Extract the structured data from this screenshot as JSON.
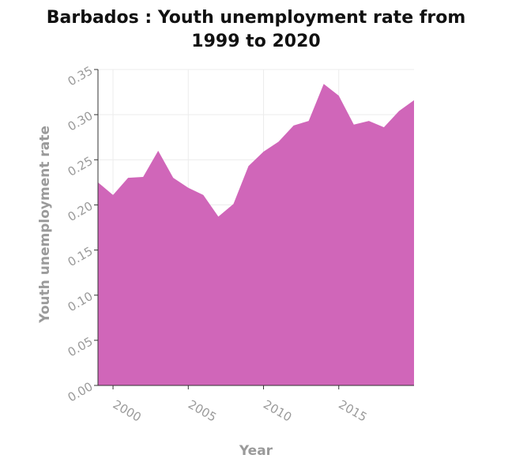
{
  "chart_data": {
    "type": "area",
    "title_lines": [
      "Barbados : Youth unemployment rate from",
      "1999 to 2020"
    ],
    "xlabel": "Year",
    "ylabel": "Youth unemployment rate",
    "xlim": [
      1999,
      2020
    ],
    "ylim": [
      0,
      0.35
    ],
    "x_ticks": [
      2000,
      2005,
      2010,
      2015
    ],
    "y_ticks": [
      "0.00",
      "0.05",
      "0.10",
      "0.15",
      "0.20",
      "0.25",
      "0.30",
      "0.35"
    ],
    "grid": true,
    "fill_color": "#d066b9",
    "series": [
      {
        "x": [
          1999,
          2000,
          2001,
          2002,
          2003,
          2004,
          2005,
          2006,
          2007,
          2008,
          2009,
          2010,
          2011,
          2012,
          2013,
          2014,
          2015,
          2016,
          2017,
          2018,
          2019,
          2020
        ],
        "values": [
          0.225,
          0.211,
          0.23,
          0.231,
          0.26,
          0.23,
          0.219,
          0.211,
          0.187,
          0.201,
          0.243,
          0.259,
          0.27,
          0.288,
          0.293,
          0.334,
          0.321,
          0.289,
          0.293,
          0.286,
          0.304,
          0.316
        ]
      }
    ]
  }
}
